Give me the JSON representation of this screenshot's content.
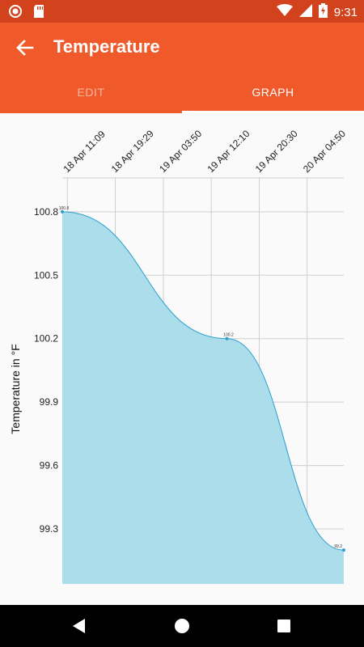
{
  "status_bar": {
    "time": "9:31",
    "icons": [
      "record-icon",
      "sd-card-icon",
      "wifi-icon",
      "signal-icon",
      "battery-charging-icon"
    ]
  },
  "app_bar": {
    "title": "Temperature",
    "back_icon": "arrow-back-icon",
    "color": "#f05a2b"
  },
  "tabs": [
    {
      "label": "EDIT",
      "active": false
    },
    {
      "label": "GRAPH",
      "active": true
    }
  ],
  "nav_bar": {
    "icons": [
      "back-triangle-icon",
      "home-circle-icon",
      "recents-square-icon"
    ]
  },
  "chart_data": {
    "type": "area",
    "title": "",
    "xlabel": "",
    "ylabel": "Temperature in °F",
    "x_tick_labels": [
      "18 Apr 11:09",
      "18 Apr 19:29",
      "19 Apr 03:50",
      "19 Apr 12:10",
      "19 Apr 20:30",
      "20 Apr 04:50"
    ],
    "y_tick_labels": [
      "100.8",
      "100.5",
      "100.2",
      "99.9",
      "99.6",
      "99.3"
    ],
    "x_range": [
      "18 Apr 10:16",
      "20 Apr 11:12"
    ],
    "ylim": [
      99.04,
      100.96
    ],
    "grid": true,
    "fill_color": "#a8dbea",
    "line_color": "#2b9fcf",
    "points": [
      {
        "x": "18 Apr 10:16",
        "y": 100.8,
        "label": "100.8"
      },
      {
        "x": "19 Apr 14:53",
        "y": 100.2,
        "label": "100.2"
      },
      {
        "x": "20 Apr 11:12",
        "y": 99.2,
        "label": "99.2"
      }
    ]
  }
}
